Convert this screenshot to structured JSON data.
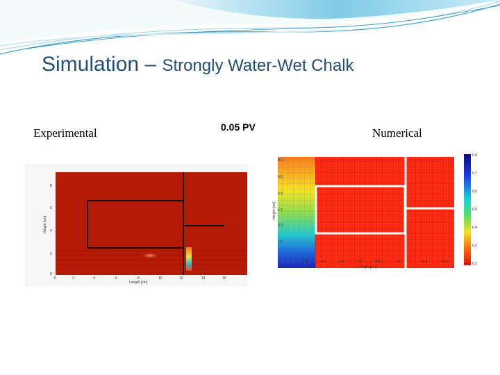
{
  "slide": {
    "title_main": "Simulation –",
    "title_sub": "Strongly Water-Wet Chalk"
  },
  "labels": {
    "experimental": "Experimental",
    "pv": "0.05 PV",
    "numerical": "Numerical"
  },
  "experimental_plot": {
    "xlabel": "Length [cm]",
    "ylabel": "Height [cm]",
    "xticks": [
      "0",
      "2",
      "4",
      "6",
      "8",
      "10",
      "12",
      "14",
      "16"
    ],
    "yticks": [
      "0",
      "2",
      "4",
      "6",
      "8"
    ]
  },
  "numerical_plot": {
    "xlabel": "Length [cm]",
    "ylabel": "Height [cm]",
    "xticks": [
      "2.9",
      "4.6",
      "5.8",
      "7.6",
      "8.8",
      "10.1",
      "11.9",
      "13.2"
    ],
    "yticks": [
      "1.6",
      "3.0",
      "4.6",
      "5.8",
      "6.8",
      "8.0"
    ],
    "colorbar_ticks": [
      "0.8",
      "0.7",
      "0.6",
      "0.5",
      "0.4",
      "0.3",
      "0.2"
    ]
  },
  "colors": {
    "title": "#1f4e79",
    "plot_red": "#b41a05",
    "plot_red_dark": "#9a1600",
    "sim_red": "#ff2a12"
  }
}
